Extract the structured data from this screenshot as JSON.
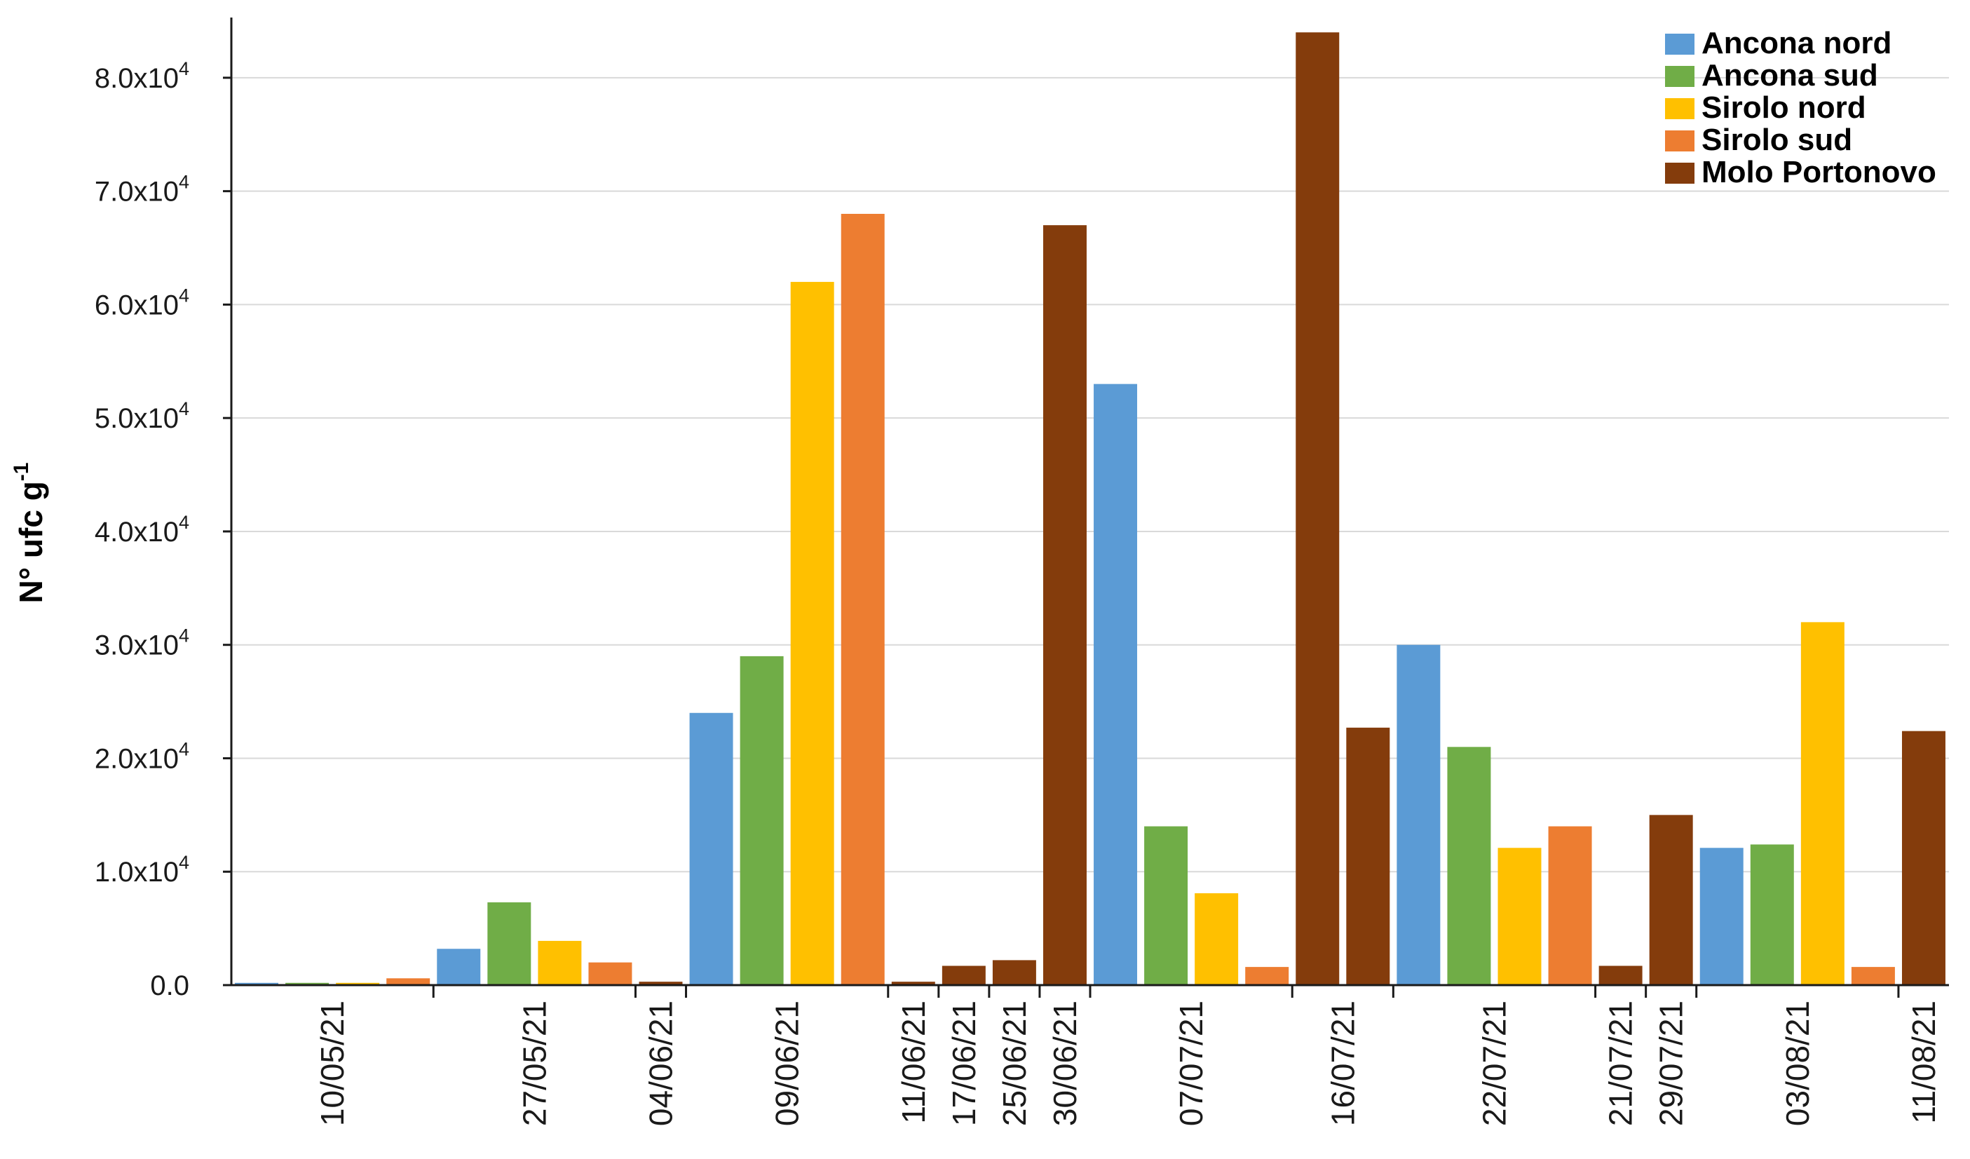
{
  "chart_data": {
    "type": "bar",
    "ylabel": "N° ufc g",
    "ylabel_superscript": "-1",
    "xlabel": "",
    "ylim": [
      0,
      85000
    ],
    "grid": "horizontal",
    "legend_position": "top-right",
    "yticks": [
      {
        "value": 0,
        "label": "0.0"
      },
      {
        "value": 10000,
        "mantissa": "1.0x10",
        "exp": "4"
      },
      {
        "value": 20000,
        "mantissa": "2.0x10",
        "exp": "4"
      },
      {
        "value": 30000,
        "mantissa": "3.0x10",
        "exp": "4"
      },
      {
        "value": 40000,
        "mantissa": "4.0x10",
        "exp": "4"
      },
      {
        "value": 50000,
        "mantissa": "5.0x10",
        "exp": "4"
      },
      {
        "value": 60000,
        "mantissa": "6.0x10",
        "exp": "4"
      },
      {
        "value": 70000,
        "mantissa": "7.0x10",
        "exp": "4"
      },
      {
        "value": 80000,
        "mantissa": "8.0x10",
        "exp": "4"
      }
    ],
    "series": [
      {
        "name": "Ancona nord",
        "color": "#5B9BD5"
      },
      {
        "name": "Ancona sud",
        "color": "#70AD47"
      },
      {
        "name": "Sirolo nord",
        "color": "#FFC000"
      },
      {
        "name": "Sirolo sud",
        "color": "#ED7D31"
      },
      {
        "name": "Molo Portonovo",
        "color": "#843C0C"
      }
    ],
    "groups": [
      {
        "date": "10/05/21",
        "bars": [
          {
            "series": 0,
            "value": 200
          },
          {
            "series": 1,
            "value": 200
          },
          {
            "series": 2,
            "value": 200
          },
          {
            "series": 3,
            "value": 600
          }
        ]
      },
      {
        "date": "27/05/21",
        "bars": [
          {
            "series": 0,
            "value": 3200
          },
          {
            "series": 1,
            "value": 7300
          },
          {
            "series": 2,
            "value": 3900
          },
          {
            "series": 3,
            "value": 2000
          }
        ]
      },
      {
        "date": "04/06/21",
        "bars": [
          {
            "series": 4,
            "value": 300
          }
        ]
      },
      {
        "date": "09/06/21",
        "bars": [
          {
            "series": 0,
            "value": 24000
          },
          {
            "series": 1,
            "value": 29000
          },
          {
            "series": 2,
            "value": 62000
          },
          {
            "series": 3,
            "value": 68000
          }
        ]
      },
      {
        "date": "11/06/21",
        "bars": [
          {
            "series": 4,
            "value": 300
          }
        ]
      },
      {
        "date": "17/06/21",
        "bars": [
          {
            "series": 4,
            "value": 1700
          }
        ]
      },
      {
        "date": "25/06/21",
        "bars": [
          {
            "series": 4,
            "value": 2200
          }
        ]
      },
      {
        "date": "30/06/21",
        "bars": [
          {
            "series": 4,
            "value": 67000
          }
        ]
      },
      {
        "date": "07/07/21",
        "bars": [
          {
            "series": 0,
            "value": 53000
          },
          {
            "series": 1,
            "value": 14000
          },
          {
            "series": 2,
            "value": 8100
          },
          {
            "series": 3,
            "value": 1600
          }
        ]
      },
      {
        "date": "16/07/21",
        "bars": [
          {
            "series": 4,
            "value": 84000
          },
          {
            "series": 4,
            "value": 22700
          }
        ]
      },
      {
        "date": "22/07/21",
        "bars": [
          {
            "series": 0,
            "value": 30000
          },
          {
            "series": 1,
            "value": 21000
          },
          {
            "series": 2,
            "value": 12100
          },
          {
            "series": 3,
            "value": 14000
          }
        ]
      },
      {
        "date": "21/07/21",
        "bars": [
          {
            "series": 4,
            "value": 1700
          }
        ]
      },
      {
        "date": "29/07/21",
        "bars": [
          {
            "series": 4,
            "value": 15000
          }
        ]
      },
      {
        "date": "03/08/21",
        "bars": [
          {
            "series": 0,
            "value": 12100
          },
          {
            "series": 1,
            "value": 12400
          },
          {
            "series": 2,
            "value": 32000
          },
          {
            "series": 3,
            "value": 1600
          }
        ]
      },
      {
        "date": "11/08/21",
        "bars": [
          {
            "series": 4,
            "value": 22400
          }
        ]
      }
    ]
  }
}
